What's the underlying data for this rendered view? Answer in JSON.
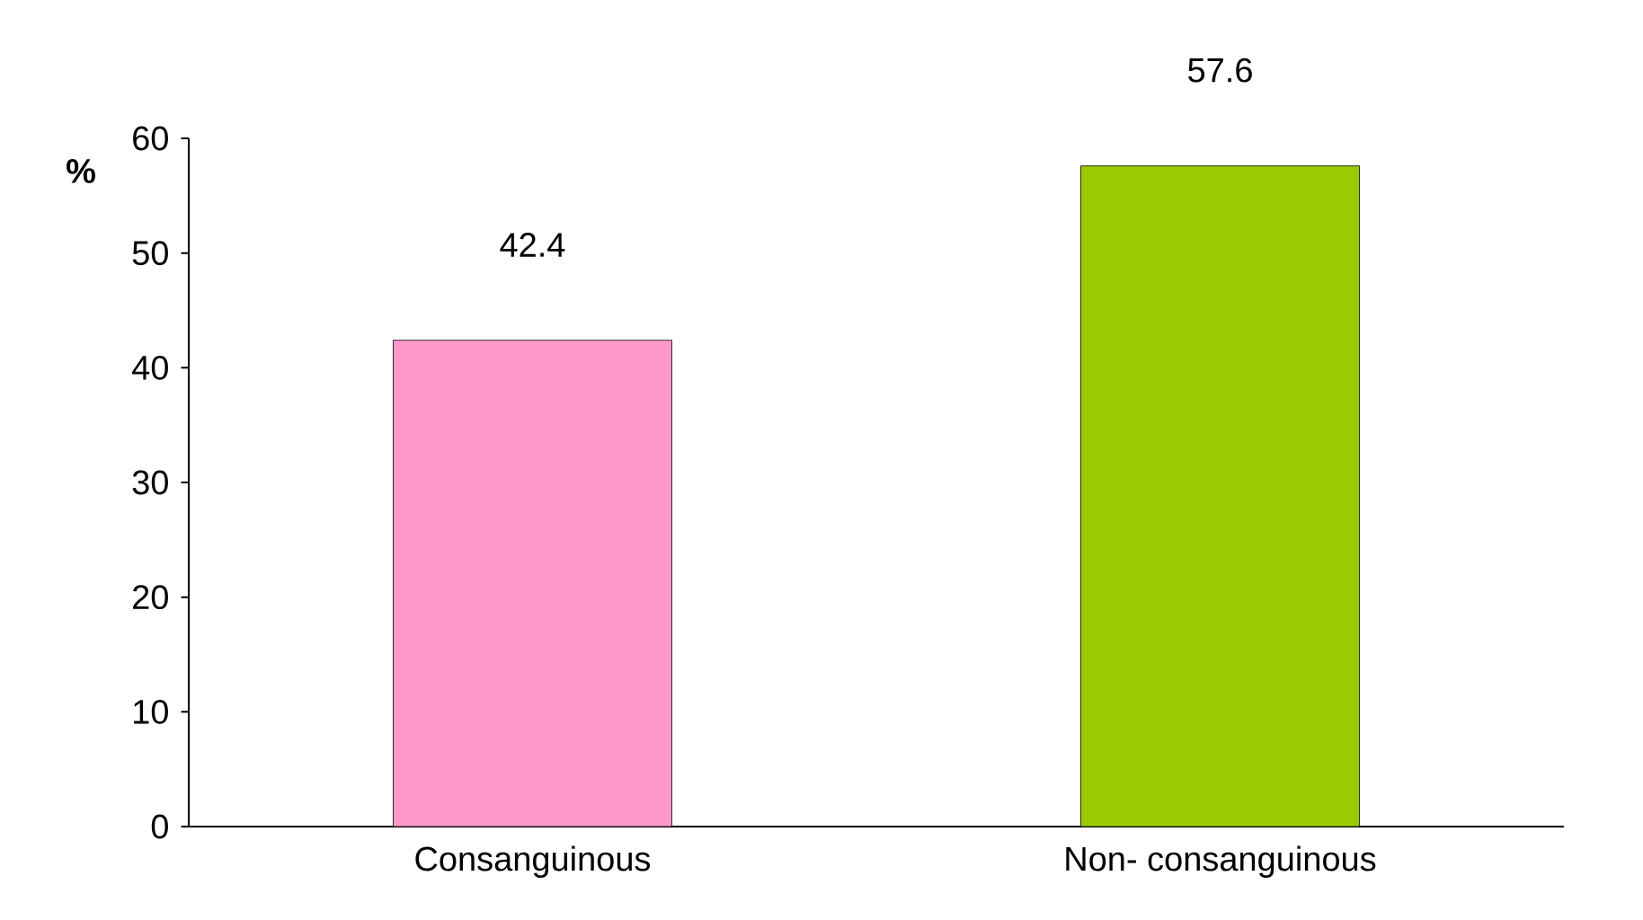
{
  "chart_data": {
    "type": "bar",
    "ylabel": "%",
    "categories": [
      "Consanguinous",
      "Non- consanguinous"
    ],
    "values": [
      42.4,
      57.6
    ],
    "colors": [
      "#ff99cc",
      "#99cc00"
    ],
    "ylim": [
      0,
      60
    ],
    "yticks": [
      0,
      10,
      20,
      30,
      40,
      50,
      60
    ],
    "data_labels": true
  }
}
